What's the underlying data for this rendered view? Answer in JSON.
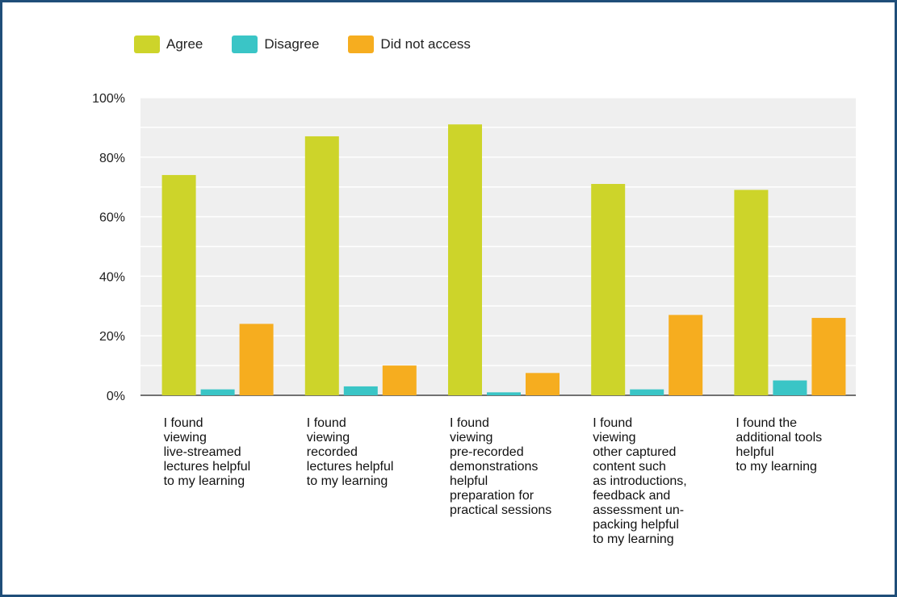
{
  "chart_data": {
    "type": "bar",
    "categories": [
      [
        "I found",
        "viewing",
        "live-streamed",
        "lectures helpful",
        "to my learning"
      ],
      [
        "I found",
        "viewing",
        "recorded",
        "lectures helpful",
        "to my learning"
      ],
      [
        "I found",
        "viewing",
        "pre-recorded",
        "demonstrations",
        "helpful",
        "preparation for",
        "practical sessions"
      ],
      [
        "I found",
        "viewing",
        "other captured",
        "content such",
        "as introductions,",
        "feedback and",
        "assessment un-",
        "packing helpful",
        "to my learning"
      ],
      [
        "I found the",
        "additional tools",
        "helpful",
        "to my learning"
      ]
    ],
    "series": [
      {
        "name": "Agree",
        "color": "#cdd42a",
        "values": [
          74,
          87,
          91,
          71,
          69
        ]
      },
      {
        "name": "Disagree",
        "color": "#3ac5c6",
        "values": [
          2,
          3,
          1,
          2,
          5
        ]
      },
      {
        "name": "Did not access",
        "color": "#f6ad1f",
        "values": [
          24,
          10,
          7.5,
          27,
          26
        ]
      }
    ],
    "yticks": [
      "0%",
      "20%",
      "40%",
      "60%",
      "80%",
      "100%"
    ],
    "ylim": [
      0,
      100
    ],
    "grid": true,
    "legend_position": "top-left"
  }
}
